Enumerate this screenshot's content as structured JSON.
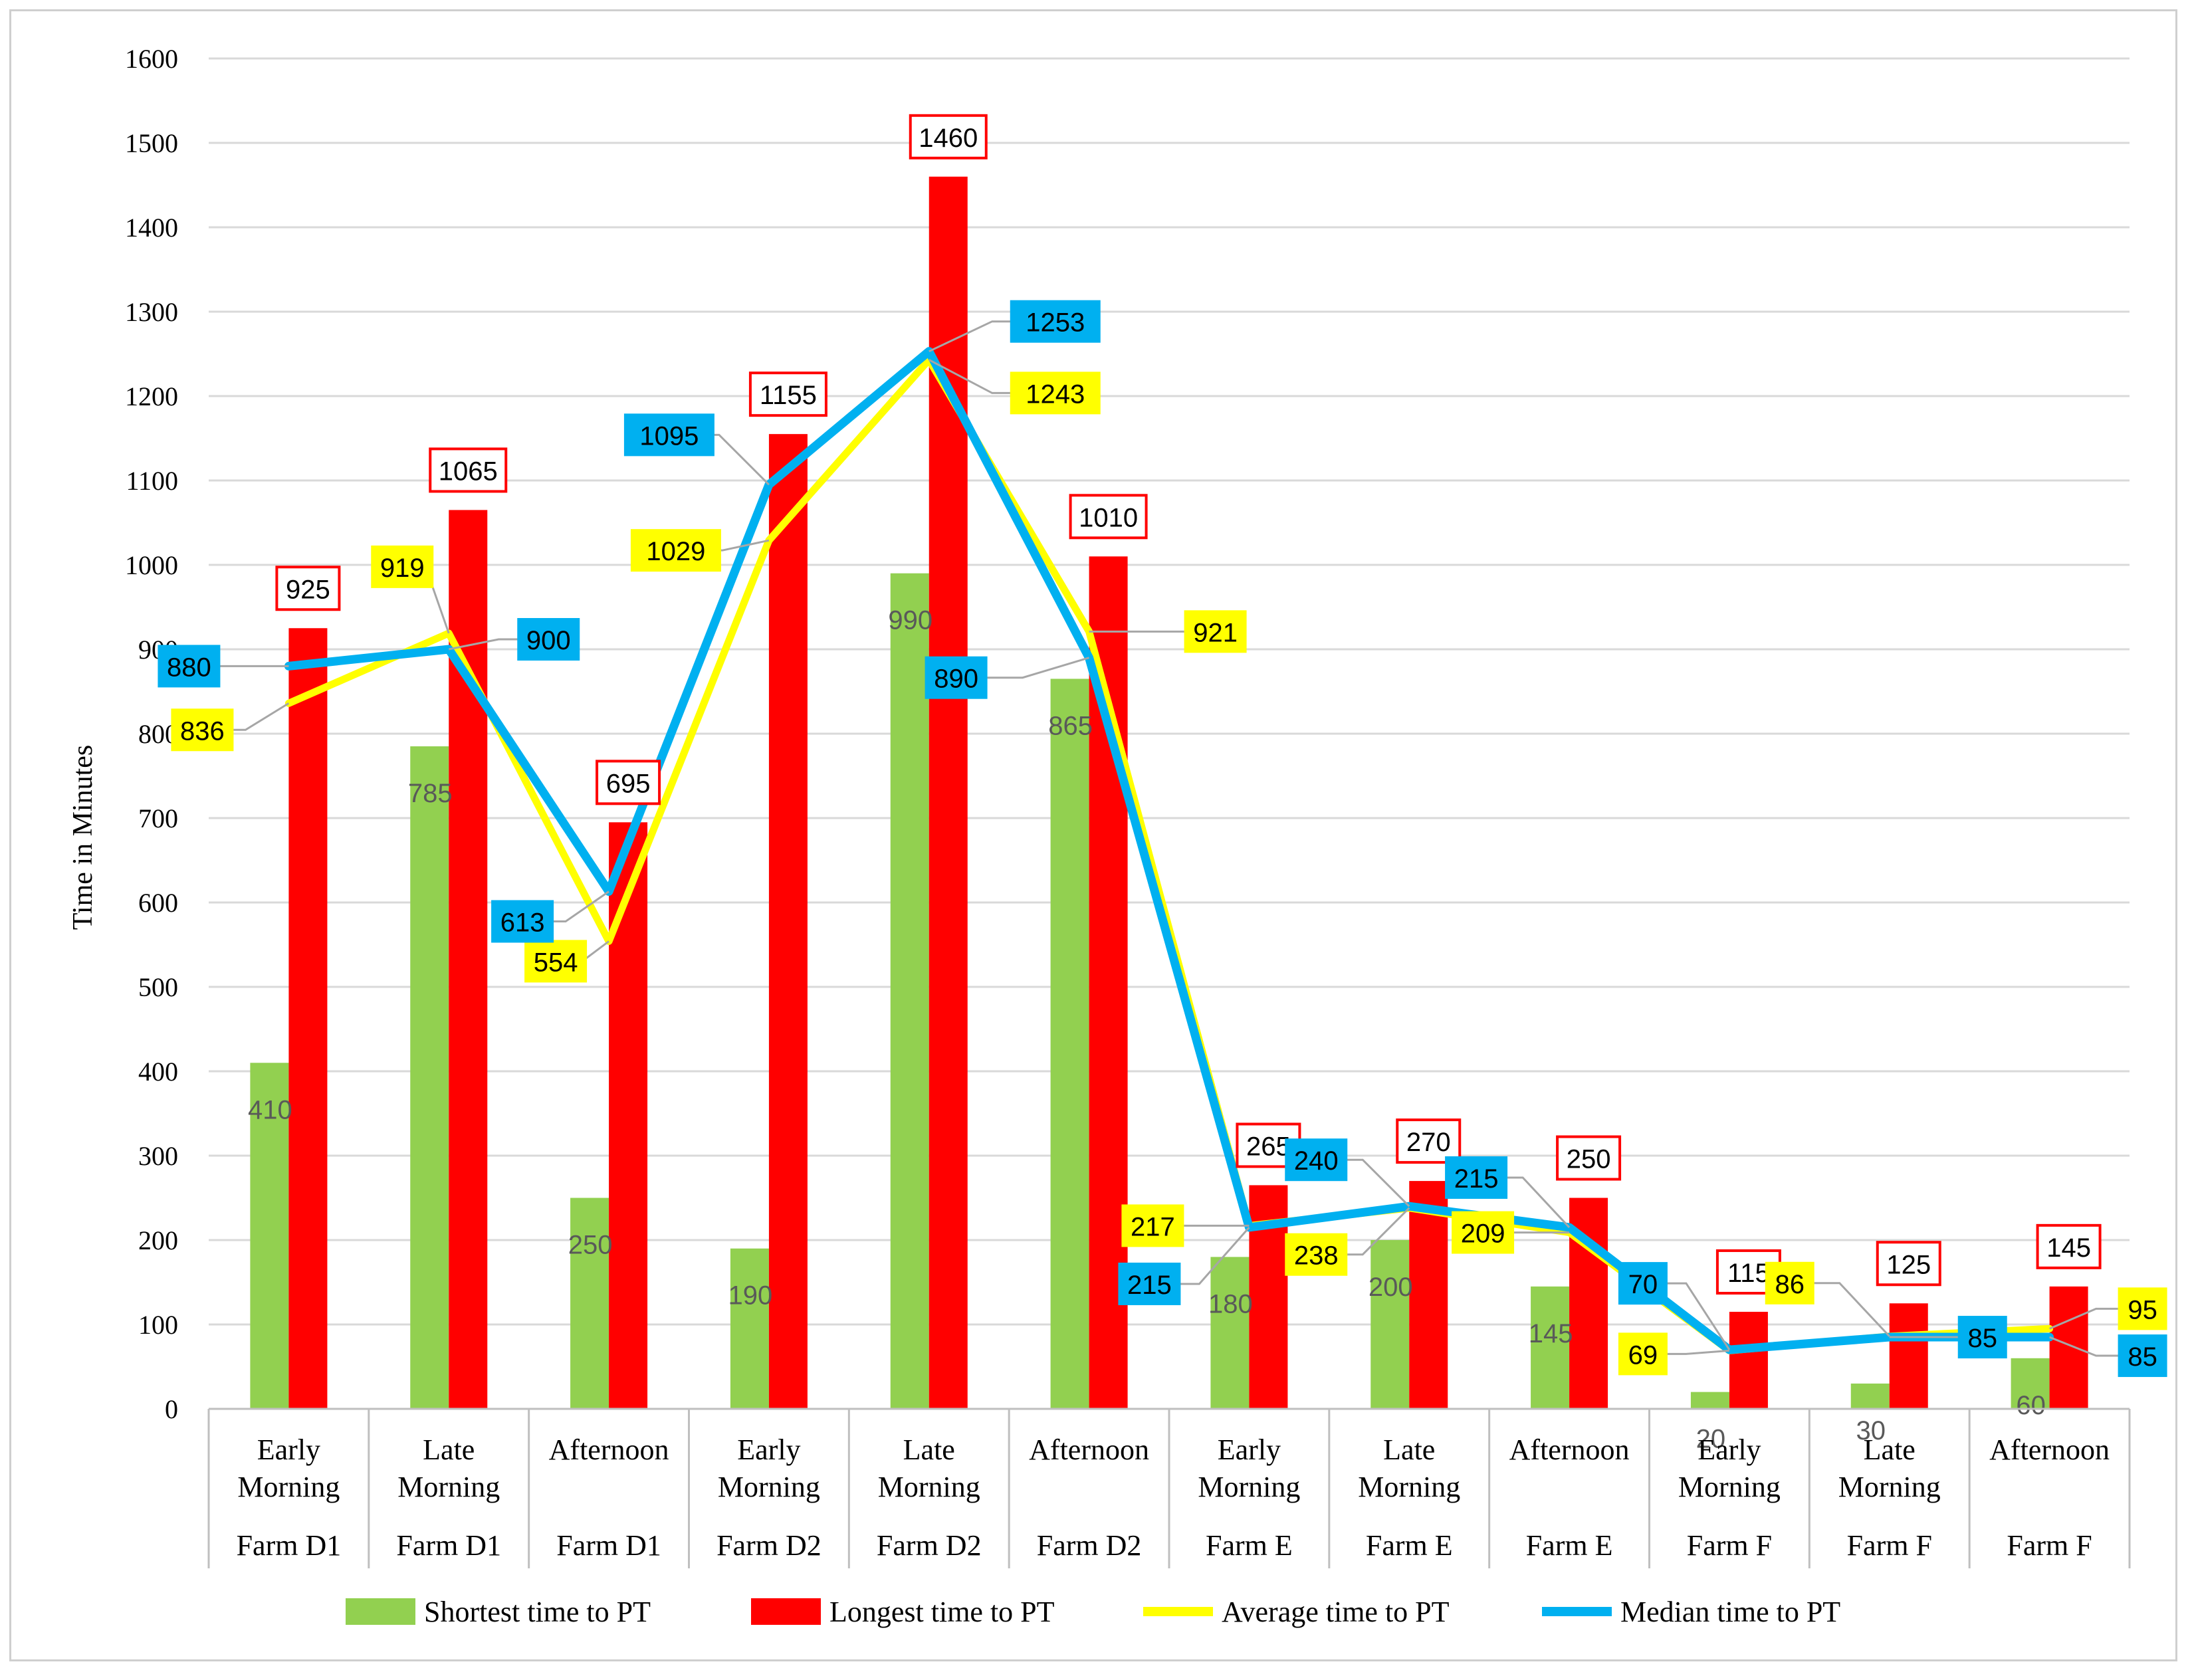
{
  "chart_data": {
    "type": "bar",
    "ylabel": "Time in Minutes",
    "ylim": [
      0,
      1600
    ],
    "ytick_step": 100,
    "grid": true,
    "legend_position": "bottom",
    "categories": [
      {
        "time": "Early Morning",
        "farm": "Farm D1"
      },
      {
        "time": "Late Morning",
        "farm": "Farm D1"
      },
      {
        "time": "Afternoon",
        "farm": "Farm D1"
      },
      {
        "time": "Early Morning",
        "farm": "Farm D2"
      },
      {
        "time": "Late Morning",
        "farm": "Farm D2"
      },
      {
        "time": "Afternoon",
        "farm": "Farm D2"
      },
      {
        "time": "Early Morning",
        "farm": "Farm E"
      },
      {
        "time": "Late Morning",
        "farm": "Farm E"
      },
      {
        "time": "Afternoon",
        "farm": "Farm E"
      },
      {
        "time": "Early Morning",
        "farm": "Farm F"
      },
      {
        "time": "Late Morning",
        "farm": "Farm F"
      },
      {
        "time": "Afternoon",
        "farm": "Farm F"
      }
    ],
    "series": [
      {
        "name": "Shortest time to PT",
        "kind": "bar",
        "color": "#92d050",
        "values": [
          410,
          785,
          250,
          190,
          990,
          865,
          180,
          200,
          145,
          20,
          30,
          60
        ]
      },
      {
        "name": "Longest time to PT",
        "kind": "bar",
        "color": "#ff0000",
        "values": [
          925,
          1065,
          695,
          1155,
          1460,
          1010,
          265,
          270,
          250,
          115,
          125,
          145
        ]
      },
      {
        "name": "Average time to PT",
        "kind": "line",
        "color": "#ffff00",
        "values": [
          836,
          919,
          554,
          1029,
          1243,
          921,
          217,
          238,
          209,
          69,
          86,
          95
        ]
      },
      {
        "name": "Median time to PT",
        "kind": "line",
        "color": "#00b0f0",
        "values": [
          880,
          900,
          613,
          1095,
          1253,
          890,
          215,
          240,
          215,
          70,
          85,
          85
        ]
      }
    ]
  }
}
